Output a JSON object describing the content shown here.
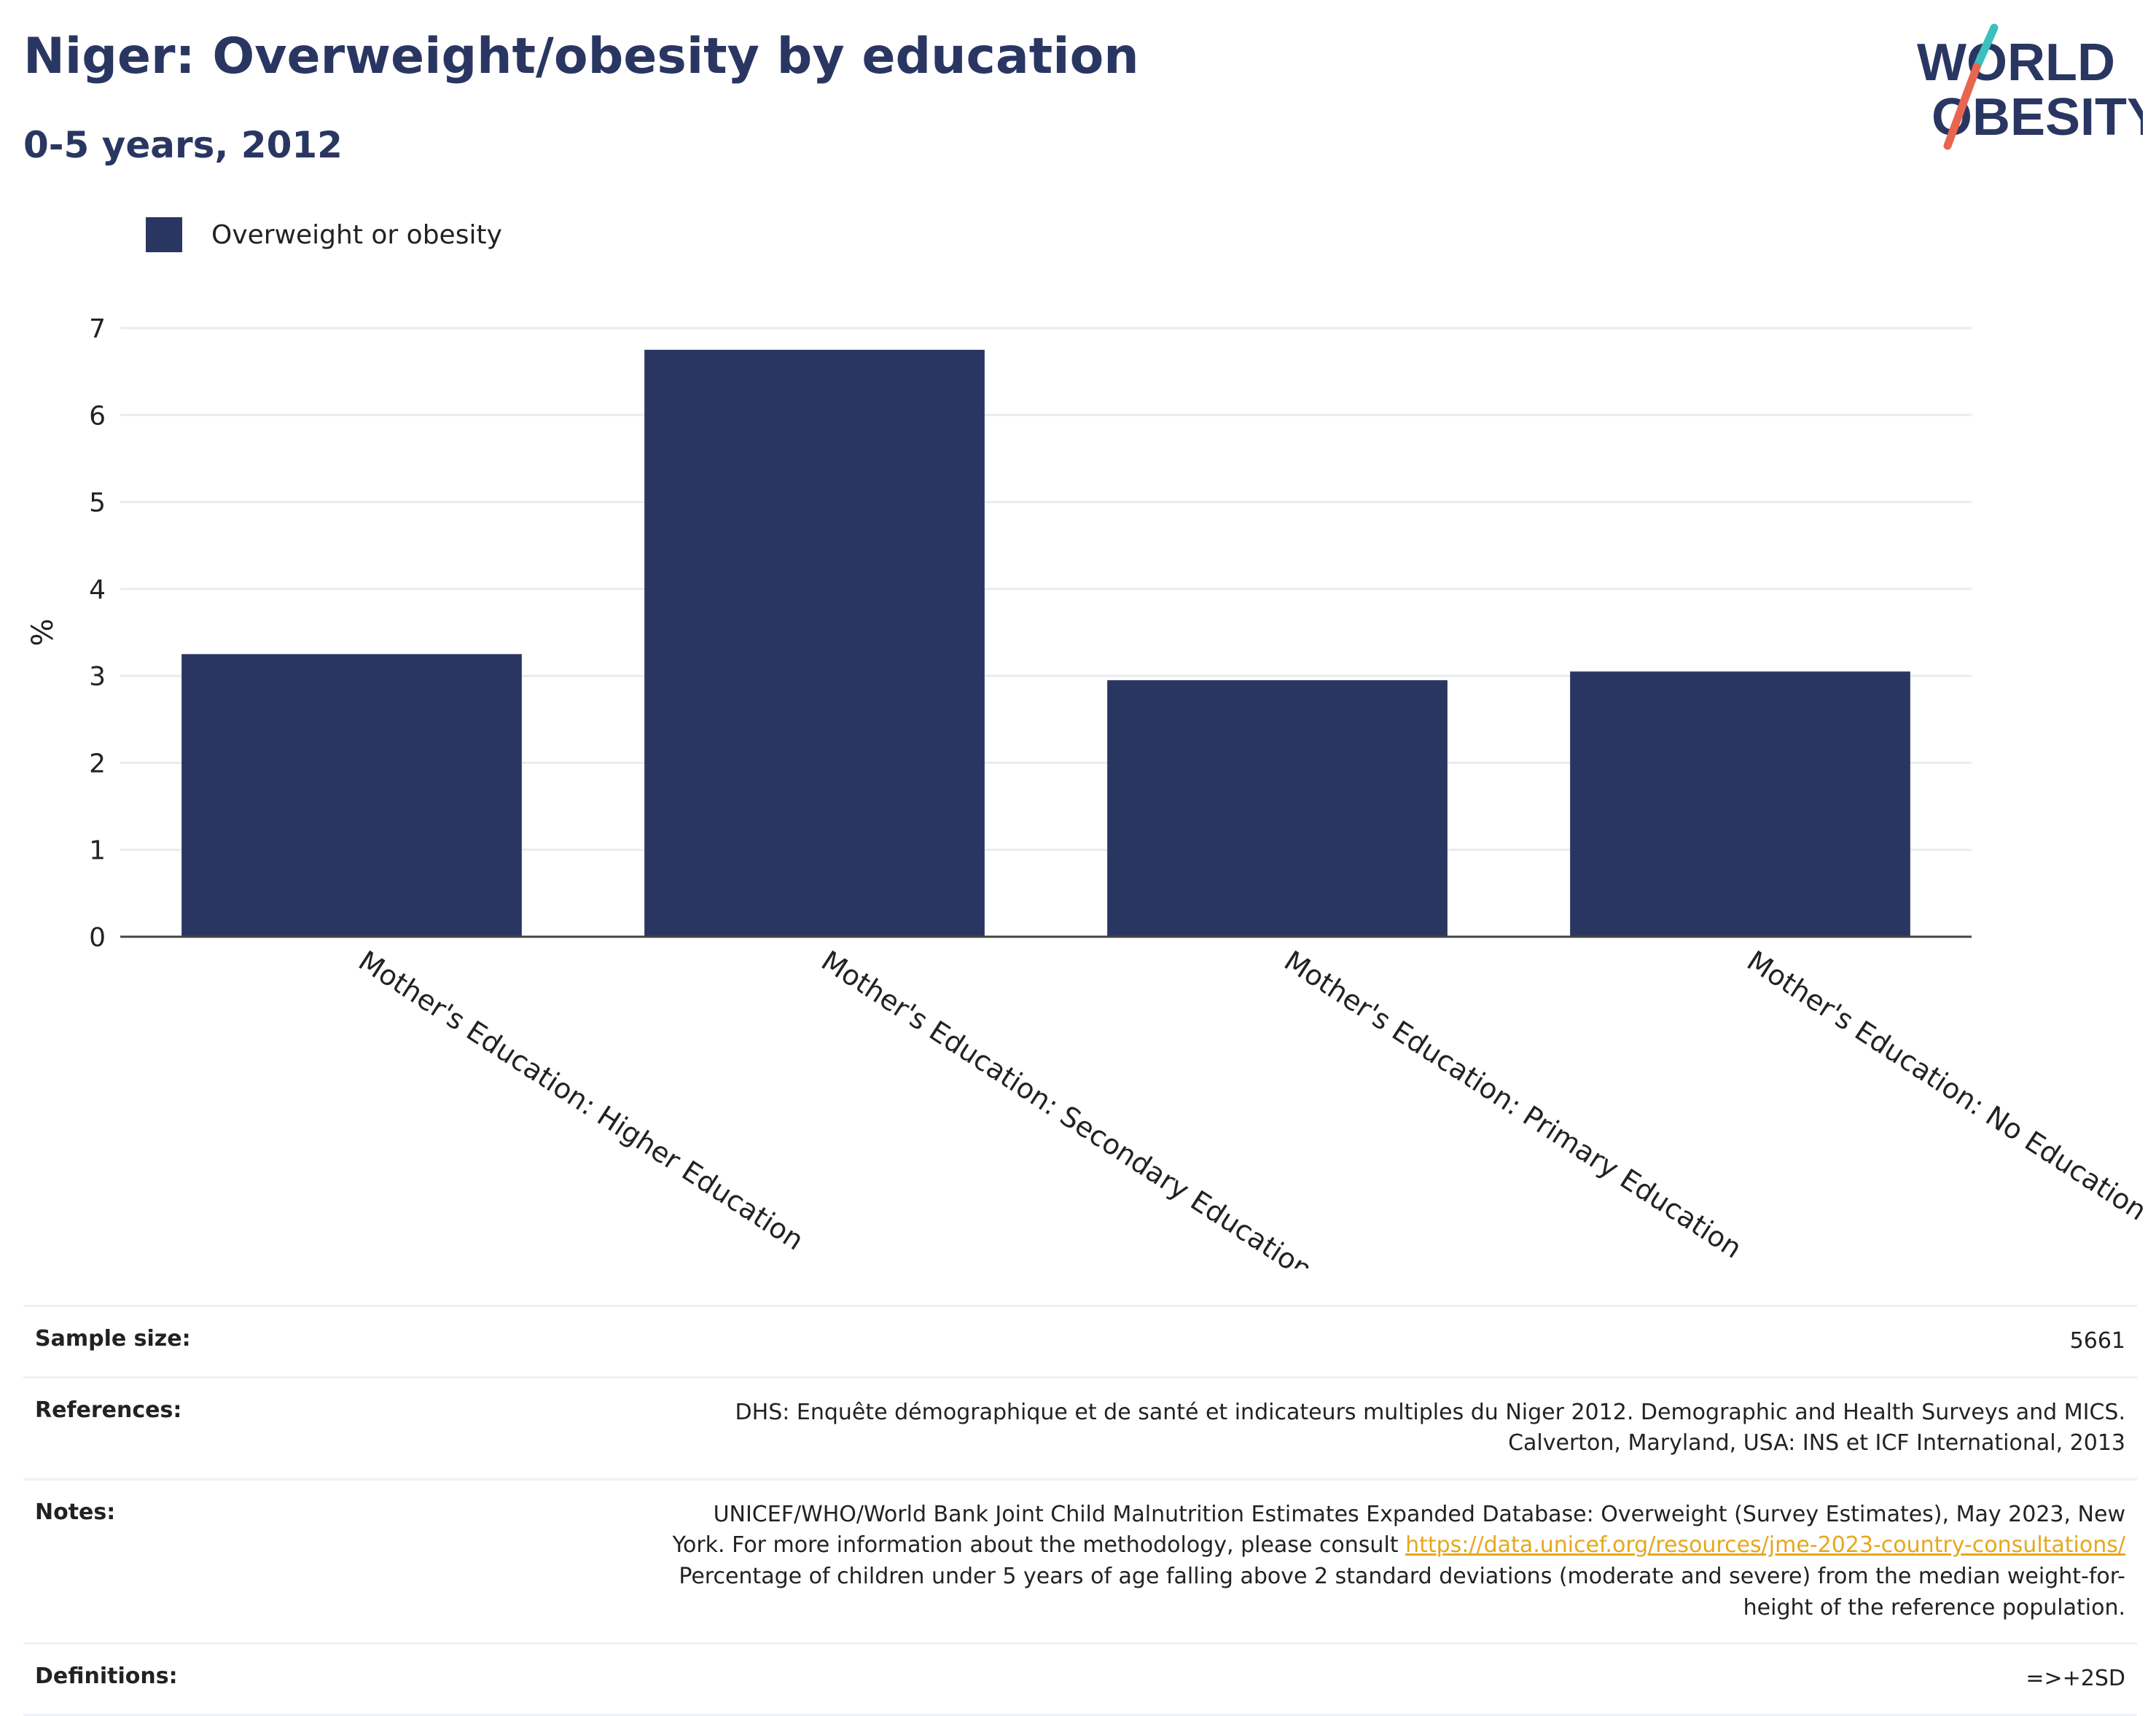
{
  "title": "Niger: Overweight/obesity by education",
  "subtitle": "0-5 years, 2012",
  "logo": {
    "line1": "WORLD",
    "line2": "OBESITY"
  },
  "colors": {
    "bar": "#2a3662",
    "accent_teal": "#3bbfbf",
    "accent_red": "#e8654f",
    "link": "#e5a81e"
  },
  "chart_data": {
    "type": "bar",
    "categories": [
      "Mother's Education: Higher Education",
      "Mother's Education: Secondary Education",
      "Mother's Education: Primary Education",
      "Mother's Education: No Education"
    ],
    "series": [
      {
        "name": "Overweight or obesity",
        "values": [
          3.25,
          6.75,
          2.95,
          3.05
        ]
      }
    ],
    "ylabel": "%",
    "ylim": [
      0,
      7
    ],
    "yticks": [
      0,
      1,
      2,
      3,
      4,
      5,
      6,
      7
    ],
    "grid": true,
    "legend": "top-left"
  },
  "info": {
    "sample_size": {
      "label": "Sample size:",
      "value": "5661"
    },
    "references": {
      "label": "References:",
      "line1": "DHS: Enquête démographique et de santé et indicateurs multiples du Niger 2012. Demographic and Health Surveys and MICS.",
      "line2": "Calverton, Maryland, USA: INS et ICF International, 2013"
    },
    "notes": {
      "label": "Notes:",
      "line1": "UNICEF/WHO/World Bank Joint Child Malnutrition Estimates Expanded Database: Overweight (Survey Estimates), May 2023, New",
      "line2_prefix": "York. For more information about the methodology, please consult ",
      "link": "https://data.unicef.org/resources/jme-2023-country-consultations/",
      "line3": "Percentage of children under 5 years of age falling above 2 standard deviations (moderate and severe) from the median weight-for-",
      "line4": "height of the reference population."
    },
    "definitions": {
      "label": "Definitions:",
      "value": "=>+2SD"
    }
  }
}
